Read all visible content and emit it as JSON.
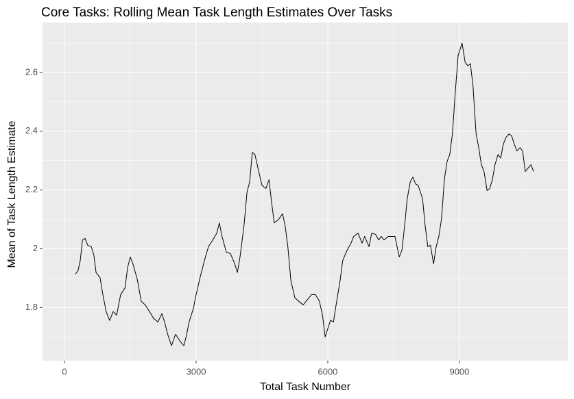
{
  "chart_data": {
    "type": "line",
    "title": "Core Tasks: Rolling Mean Task Length Estimates Over Tasks",
    "x_label": "Total Task Number",
    "y_label": "Mean of Task Length Estimate",
    "xlim": [
      -500,
      11470
    ],
    "ylim": [
      1.619,
      2.77
    ],
    "xticks": [
      0,
      3000,
      6000,
      9000
    ],
    "yticks": [
      1.8,
      2.0,
      2.2,
      2.4,
      2.6
    ],
    "x_minor_grid": [
      1500,
      4500,
      7500,
      10500
    ],
    "y_minor_grid": [
      1.7,
      1.9,
      2.1,
      2.3,
      2.5,
      2.7
    ],
    "grid": true,
    "color": "#000000",
    "x": [
      250,
      310,
      360,
      410,
      470,
      530,
      610,
      670,
      720,
      810,
      875,
      950,
      1030,
      1110,
      1190,
      1280,
      1380,
      1440,
      1500,
      1560,
      1660,
      1750,
      1840,
      1940,
      2030,
      2130,
      2220,
      2280,
      2360,
      2440,
      2530,
      2630,
      2720,
      2780,
      2840,
      2940,
      3000,
      3090,
      3190,
      3280,
      3380,
      3470,
      3530,
      3590,
      3690,
      3780,
      3880,
      3940,
      4000,
      4090,
      4160,
      4220,
      4280,
      4340,
      4410,
      4500,
      4590,
      4660,
      4720,
      4780,
      4880,
      4970,
      5030,
      5090,
      5160,
      5250,
      5340,
      5440,
      5530,
      5630,
      5720,
      5810,
      5880,
      5940,
      6000,
      6060,
      6130,
      6190,
      6280,
      6340,
      6440,
      6530,
      6590,
      6690,
      6780,
      6840,
      6940,
      7000,
      7090,
      7160,
      7220,
      7280,
      7380,
      7470,
      7530,
      7630,
      7690,
      7750,
      7810,
      7880,
      7940,
      8000,
      8060,
      8160,
      8220,
      8280,
      8340,
      8410,
      8470,
      8530,
      8590,
      8660,
      8720,
      8780,
      8840,
      8910,
      8970,
      9060,
      9130,
      9190,
      9250,
      9310,
      9380,
      9440,
      9500,
      9560,
      9630,
      9690,
      9750,
      9810,
      9880,
      9940,
      10000,
      10060,
      10130,
      10190,
      10250,
      10310,
      10380,
      10440,
      10500,
      10560,
      10630,
      10690
    ],
    "values": [
      1.914,
      1.926,
      1.96,
      2.03,
      2.035,
      2.012,
      2.007,
      1.979,
      1.919,
      1.902,
      1.844,
      1.786,
      1.756,
      1.786,
      1.774,
      1.844,
      1.867,
      1.937,
      1.972,
      1.949,
      1.895,
      1.821,
      1.809,
      1.786,
      1.763,
      1.751,
      1.779,
      1.751,
      1.705,
      1.67,
      1.709,
      1.686,
      1.67,
      1.705,
      1.751,
      1.798,
      1.844,
      1.902,
      1.96,
      2.007,
      2.03,
      2.053,
      2.088,
      2.042,
      1.988,
      1.984,
      1.949,
      1.919,
      1.972,
      2.077,
      2.193,
      2.228,
      2.328,
      2.321,
      2.274,
      2.216,
      2.205,
      2.235,
      2.158,
      2.088,
      2.1,
      2.119,
      2.077,
      2.007,
      1.891,
      1.833,
      1.821,
      1.809,
      1.826,
      1.844,
      1.844,
      1.821,
      1.774,
      1.7,
      1.728,
      1.756,
      1.751,
      1.809,
      1.891,
      1.96,
      1.995,
      2.019,
      2.042,
      2.053,
      2.019,
      2.042,
      2.007,
      2.053,
      2.049,
      2.03,
      2.042,
      2.03,
      2.042,
      2.042,
      2.042,
      1.972,
      1.995,
      2.077,
      2.17,
      2.228,
      2.244,
      2.221,
      2.216,
      2.17,
      2.077,
      2.007,
      2.012,
      1.949,
      2.007,
      2.042,
      2.1,
      2.24,
      2.298,
      2.321,
      2.391,
      2.542,
      2.658,
      2.7,
      2.635,
      2.623,
      2.63,
      2.553,
      2.391,
      2.344,
      2.286,
      2.263,
      2.198,
      2.205,
      2.235,
      2.286,
      2.321,
      2.309,
      2.356,
      2.379,
      2.391,
      2.384,
      2.356,
      2.333,
      2.344,
      2.333,
      2.263,
      2.274,
      2.286,
      2.263
    ]
  }
}
